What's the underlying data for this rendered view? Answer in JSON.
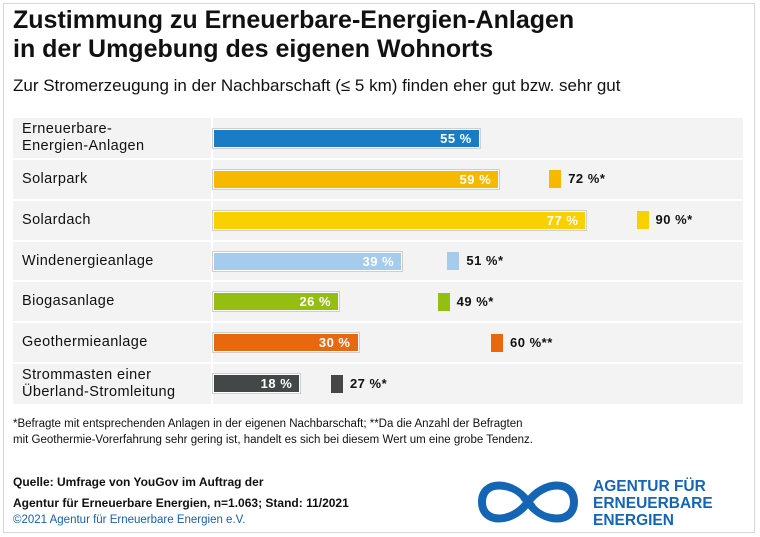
{
  "title_line1": "Zustimmung zu Erneuerbare-Energien-Anlagen",
  "title_line2": "in der Umgebung des eigenen Wohnorts",
  "subtitle": "Zur Stromerzeugung in der Nachbarschaft (≤ 5 km) finden eher gut bzw. sehr gut",
  "footnote_line1": "*Befragte mit entsprechenden Anlagen in der eigenen Nachbarschaft; **Da die Anzahl der Befragten",
  "footnote_line2": "mit Geothermie-Vorerfahrung sehr gering ist, handelt es sich bei diesem Wert um eine grobe Tendenz.",
  "source_line1": "Quelle: Umfrage von YouGov im Auftrag der",
  "source_line2": "Agentur für Erneuerbare Energien, n=1.063; Stand: 11/2021",
  "copyright": "©2021 Agentur für Erneuerbare Energien e.V.",
  "logo": {
    "line1": "AGENTUR FÜR",
    "line2": "ERNEUERBARE",
    "line3": "ENERGIEN",
    "color": "#1565b5"
  },
  "chart_data": {
    "type": "bar",
    "orientation": "horizontal",
    "title": "Zustimmung zu Erneuerbare-Energien-Anlagen in der Umgebung des eigenen Wohnorts",
    "subtitle": "Zur Stromerzeugung in der Nachbarschaft (≤ 5 km) finden eher gut bzw. sehr gut",
    "unit": "%",
    "xlim": [
      0,
      100
    ],
    "grid": false,
    "categories": [
      {
        "line1": "Erneuerbare-",
        "line2": "Energien-Anlagen",
        "color": "#1a7cc5"
      },
      {
        "line1": "Solarpark",
        "line2": "",
        "color": "#f6b900"
      },
      {
        "line1": "Solardach",
        "line2": "",
        "color": "#f9d100"
      },
      {
        "line1": "Windenergieanlage",
        "line2": "",
        "color": "#a7cbea"
      },
      {
        "line1": "Biogasanlage",
        "line2": "",
        "color": "#95be12"
      },
      {
        "line1": "Geothermieanlage",
        "line2": "",
        "color": "#e8680f"
      },
      {
        "line1": "Strommasten einer",
        "line2": "Überland-Stromleitung",
        "color": "#444748"
      }
    ],
    "series": [
      {
        "values": [
          55,
          59,
          77,
          39,
          26,
          30,
          18
        ],
        "labels": [
          "55 %",
          "59 %",
          "77 %",
          "39 %",
          "26 %",
          "30 %",
          "18 %"
        ]
      },
      {
        "values": [
          null,
          72,
          90,
          51,
          49,
          60,
          27
        ],
        "labels": [
          "",
          "72 %*",
          "90 %*",
          "51 %*",
          "49 %*",
          "60 %**",
          "27 %*"
        ]
      }
    ]
  }
}
